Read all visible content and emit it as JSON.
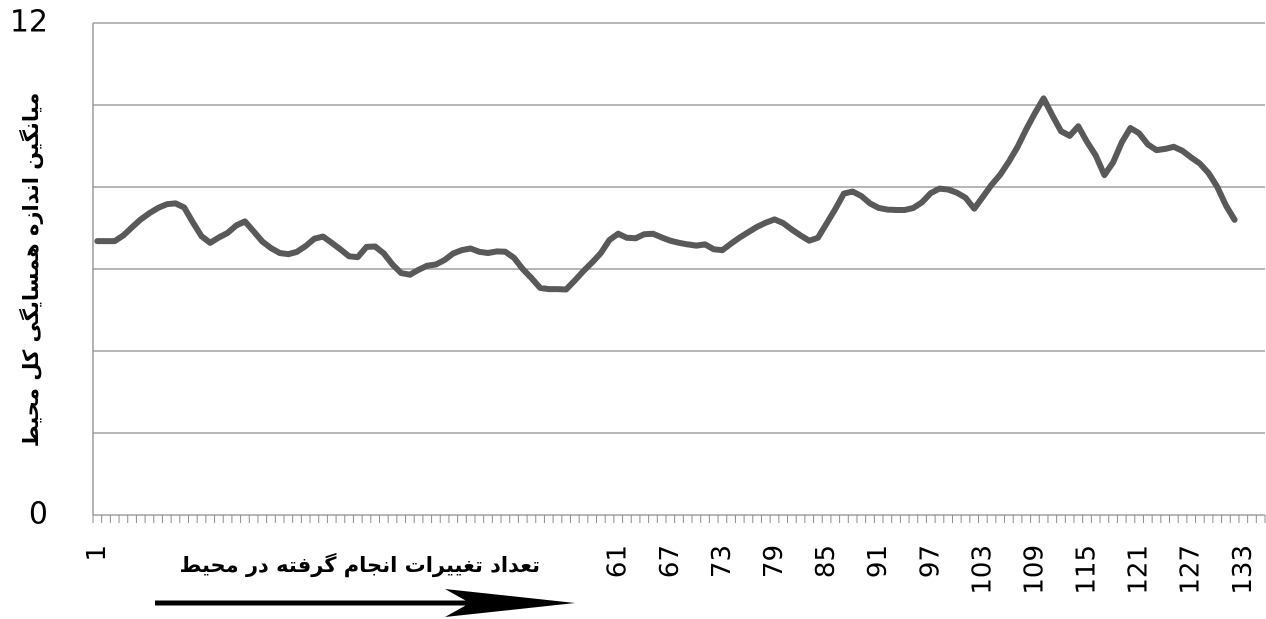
{
  "chart_data": {
    "type": "line",
    "y_label": "میانگین اندازه همسایگی کل محیط",
    "x_label": "تعداد تغییرات انجام گرفته در محیط",
    "categories": [
      "1",
      null,
      null,
      null,
      null,
      null,
      null,
      null,
      null,
      null,
      null,
      null,
      null,
      null,
      null,
      null,
      null,
      null,
      null,
      null,
      null,
      null,
      null,
      null,
      null,
      null,
      null,
      null,
      null,
      null,
      null,
      null,
      null,
      null,
      null,
      null,
      null,
      null,
      null,
      null,
      null,
      null,
      null,
      null,
      null,
      null,
      null,
      null,
      null,
      null,
      null,
      null,
      null,
      null,
      null,
      null,
      null,
      null,
      null,
      null,
      "61",
      null,
      null,
      null,
      null,
      null,
      "67",
      null,
      null,
      null,
      null,
      null,
      "73",
      null,
      null,
      null,
      null,
      null,
      "79",
      null,
      null,
      null,
      null,
      null,
      "85",
      null,
      null,
      null,
      null,
      null,
      "91",
      null,
      null,
      null,
      null,
      null,
      "97",
      null,
      null,
      null,
      null,
      null,
      "103",
      null,
      null,
      null,
      null,
      null,
      "109",
      null,
      null,
      null,
      null,
      null,
      "115",
      null,
      null,
      null,
      null,
      null,
      "121",
      null,
      null,
      null,
      null,
      null,
      "127",
      null,
      null,
      null,
      null,
      null,
      "133",
      null,
      null
    ],
    "values": [
      6.68,
      6.68,
      6.68,
      6.82,
      7.02,
      7.21,
      7.36,
      7.49,
      7.58,
      7.6,
      7.5,
      7.14,
      6.8,
      6.64,
      6.77,
      6.88,
      7.06,
      7.16,
      6.92,
      6.67,
      6.51,
      6.39,
      6.36,
      6.42,
      6.56,
      6.74,
      6.79,
      6.64,
      6.48,
      6.31,
      6.29,
      6.54,
      6.55,
      6.38,
      6.11,
      5.9,
      5.86,
      5.98,
      6.08,
      6.11,
      6.22,
      6.38,
      6.46,
      6.5,
      6.42,
      6.39,
      6.43,
      6.42,
      6.27,
      6.0,
      5.78,
      5.54,
      5.51,
      5.51,
      5.5,
      5.72,
      5.95,
      6.16,
      6.39,
      6.71,
      6.86,
      6.76,
      6.75,
      6.85,
      6.86,
      6.77,
      6.69,
      6.64,
      6.6,
      6.57,
      6.6,
      6.48,
      6.46,
      6.62,
      6.77,
      6.9,
      7.03,
      7.13,
      7.21,
      7.12,
      6.96,
      6.82,
      6.69,
      6.76,
      7.11,
      7.46,
      7.84,
      7.89,
      7.78,
      7.6,
      7.49,
      7.45,
      7.44,
      7.44,
      7.49,
      7.63,
      7.85,
      7.96,
      7.94,
      7.86,
      7.74,
      7.47,
      7.76,
      8.05,
      8.3,
      8.62,
      8.98,
      9.41,
      9.8,
      10.16,
      9.75,
      9.36,
      9.25,
      9.48,
      9.1,
      8.77,
      8.29,
      8.6,
      9.09,
      9.44,
      9.31,
      9.04,
      8.9,
      8.93,
      8.98,
      8.88,
      8.72,
      8.57,
      8.34,
      8.0,
      7.55,
      7.2,
      null,
      null,
      null
    ],
    "color": "#595959",
    "ylim": [
      0,
      12
    ],
    "yticks": [
      0,
      12
    ],
    "ygrid": [
      0,
      2,
      4,
      6,
      8,
      10,
      12
    ],
    "grid": true
  }
}
